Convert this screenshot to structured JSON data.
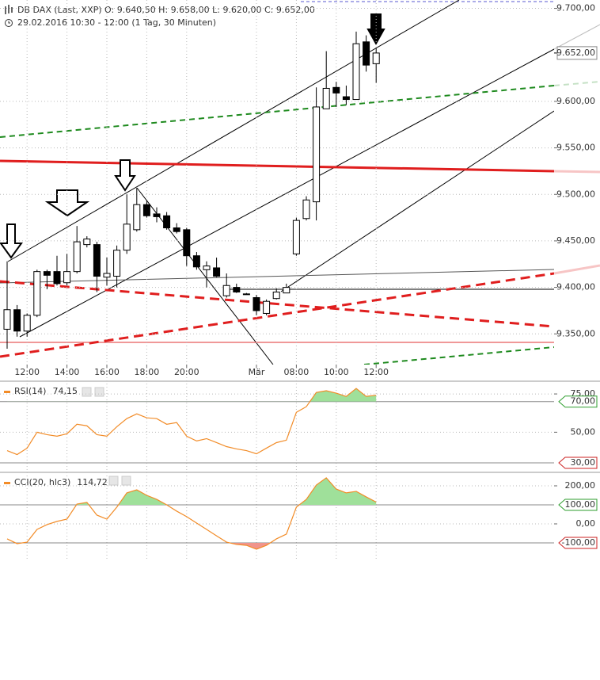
{
  "chart_data": [
    {
      "type": "candlestick",
      "title": "DB DAX (Last, XXP)   O: 9.640,50   H: 9.658,00   L: 9.620,00   C: 9.652,00",
      "subtitle": "29.02.2016 10:30 - 12:00 (1 Tag, 30 Minuten)",
      "categories": [
        null,
        null,
        "12:00",
        null,
        null,
        null,
        "14:00",
        null,
        null,
        null,
        "16:00",
        null,
        null,
        null,
        "18:00",
        null,
        null,
        null,
        "20:00",
        null,
        null,
        null,
        null,
        null,
        null,
        "Mär",
        null,
        null,
        null,
        "08:00",
        null,
        null,
        null,
        "10:00",
        null,
        null,
        null,
        "12:00"
      ],
      "open": [
        9355,
        9376,
        9353,
        9370,
        9417,
        9417,
        9405,
        9417,
        9446,
        9446,
        9411,
        9412,
        9440,
        9462,
        9489,
        9479,
        9477,
        9464,
        9462,
        9434,
        9419,
        9421,
        9391,
        9400,
        9393,
        9389,
        9372,
        9388,
        9394,
        9436,
        9474,
        9492,
        9592,
        9615,
        9605,
        9602,
        9664,
        9640.5
      ],
      "high": [
        9428,
        9381,
        9372,
        9419,
        9419,
        9434,
        9436,
        9466,
        9455,
        9449,
        9432,
        9445,
        9500,
        9507,
        9494,
        9486,
        9481,
        9469,
        9464,
        9438,
        9428,
        9432,
        9415,
        9404,
        9394,
        9392,
        9387,
        9399,
        9404,
        9475,
        9498,
        9615,
        9654,
        9621,
        9617,
        9675,
        9671,
        9658
      ],
      "low": [
        9334,
        9347,
        9347,
        9368,
        9398,
        9402,
        9402,
        9415,
        9443,
        9395,
        9402,
        9400,
        9436,
        9460,
        9475,
        9470,
        9462,
        9458,
        9423,
        9419,
        9400,
        9411,
        9389,
        9394,
        9392,
        9370,
        9370,
        9387,
        9394,
        9434,
        9472,
        9472,
        9592,
        9594,
        9596,
        9602,
        9632,
        9620
      ],
      "close": [
        9376,
        9353,
        9370,
        9417,
        9413,
        9404,
        9417,
        9449,
        9452,
        9412,
        9415,
        9440,
        9468,
        9489,
        9477,
        9476,
        9464,
        9460,
        9434,
        9422,
        9423,
        9412,
        9402,
        9395,
        9393,
        9375,
        9385,
        9395,
        9400,
        9472,
        9494,
        9594,
        9614,
        9609,
        9602,
        9662,
        9639,
        9652
      ],
      "up_color": "#ffffff",
      "down_color": "#000000",
      "ylim": [
        9317,
        9709
      ],
      "yticks": [
        {
          "value": 9350,
          "label": "9.350,00"
        },
        {
          "value": 9400,
          "label": "9.400,00"
        },
        {
          "value": 9450,
          "label": "9.450,00"
        },
        {
          "value": 9500,
          "label": "9.500,00"
        },
        {
          "value": 9550,
          "label": "9.550,00"
        },
        {
          "value": 9600,
          "label": "9.600,00"
        },
        {
          "value": 9700,
          "label": "9.700,00"
        }
      ],
      "last_price": {
        "value": 9652,
        "label": "9.652,00"
      },
      "grid": true
    },
    {
      "type": "line",
      "name": "RSI(14)",
      "legend_value": "74,15",
      "color": "#f28c28",
      "values": [
        38.0,
        35.4,
        39.6,
        50,
        48.4,
        47.4,
        49.0,
        55.2,
        54.2,
        48.4,
        47.4,
        53.6,
        58.9,
        62.0,
        59.4,
        58.9,
        55.2,
        56.3,
        47.4,
        44.3,
        45.8,
        43.2,
        40.6,
        39.1,
        38.0,
        35.9,
        39.6,
        43.2,
        44.8,
        63.0,
        66.7,
        76.0,
        77.1,
        75.5,
        73.4,
        78.6,
        73.4,
        74.15
      ],
      "ylim": [
        24.3,
        82.8
      ],
      "yticks": [
        {
          "value": 50,
          "label": "50,00"
        },
        {
          "value": 75,
          "label": "75,00"
        }
      ],
      "levels": [
        {
          "value": 70,
          "label": "70,00",
          "color": "#2e9e2e",
          "fill": "above",
          "fill_color": "#9fe09a"
        },
        {
          "value": 30,
          "label": "30,00",
          "color": "#cc2222",
          "fill": "below",
          "fill_color": "#f0948c"
        }
      ],
      "grid": true
    },
    {
      "type": "line",
      "name": "CCI(20, hlc3)",
      "legend_value": "114,72",
      "color": "#f28c28",
      "values": [
        -79,
        -104,
        -96,
        -29,
        -4,
        13,
        25,
        104,
        113,
        46,
        25,
        88,
        163,
        179,
        150,
        129,
        100,
        67,
        38,
        4,
        -29,
        -63,
        -96,
        -108,
        -113,
        -133,
        -113,
        -79,
        -54,
        88,
        129,
        204,
        242,
        183,
        163,
        171,
        142,
        114.72
      ],
      "ylim": [
        -187.5,
        266.7
      ],
      "yticks": [
        {
          "value": 0,
          "label": "0,00"
        },
        {
          "value": 200,
          "label": "200,00"
        }
      ],
      "levels": [
        {
          "value": 100,
          "label": "100,00",
          "color": "#2e9e2e",
          "fill": "above",
          "fill_color": "#9fe09a"
        },
        {
          "value": -100,
          "label": "-100,00",
          "color": "#cc2222",
          "fill": "below",
          "fill_color": "#f0948c"
        }
      ],
      "grid": true
    }
  ]
}
